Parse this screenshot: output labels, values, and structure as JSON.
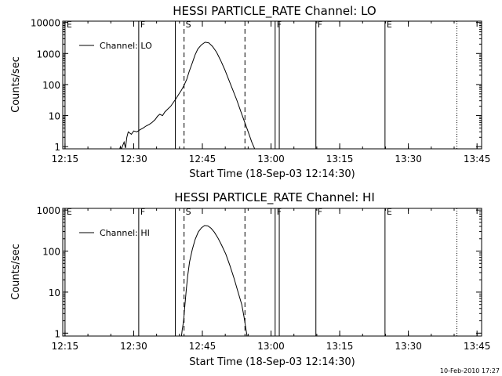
{
  "footer_date": "10-Feb-2010 17:27",
  "chart_data": [
    {
      "type": "line",
      "title": "HESSI PARTICLE_RATE Channel: LO",
      "xlabel": "Start Time (18-Sep-03 12:14:30)",
      "ylabel": "Counts/sec",
      "y_scale": "log",
      "ylim": [
        0.85,
        11000
      ],
      "xlim_minutes": [
        0,
        91.5
      ],
      "x_ticks": [
        {
          "label": "12:15",
          "t": 0.5
        },
        {
          "label": "12:30",
          "t": 15.5
        },
        {
          "label": "12:45",
          "t": 30.5
        },
        {
          "label": "13:00",
          "t": 45.5
        },
        {
          "label": "13:15",
          "t": 60.5
        },
        {
          "label": "13:30",
          "t": 75.5
        },
        {
          "label": "13:45",
          "t": 90.5
        }
      ],
      "y_ticks": [
        {
          "label": "1",
          "v": 1
        },
        {
          "label": "10",
          "v": 10
        },
        {
          "label": "100",
          "v": 100
        },
        {
          "label": "1000",
          "v": 1000
        },
        {
          "label": "10000",
          "v": 10000
        }
      ],
      "legend": {
        "position": "top-left",
        "entries": [
          "Channel: LO"
        ]
      },
      "markers": [
        {
          "t": 0.5,
          "style": "solid",
          "label": "E"
        },
        {
          "t": 16.6,
          "style": "solid",
          "label": "F"
        },
        {
          "t": 24.6,
          "style": "solid",
          "label": ""
        },
        {
          "t": 26.5,
          "style": "dashed",
          "label": "S"
        },
        {
          "t": 39.8,
          "style": "dashed",
          "label": ""
        },
        {
          "t": 46.4,
          "style": "solid",
          "label": "F"
        },
        {
          "t": 47.3,
          "style": "solid",
          "label": ""
        },
        {
          "t": 55.3,
          "style": "solid",
          "label": "F"
        },
        {
          "t": 70.4,
          "style": "solid",
          "label": "E"
        },
        {
          "t": 86.1,
          "style": "dotted",
          "label": ""
        }
      ],
      "series": [
        {
          "name": "Channel: LO",
          "points": [
            [
              12.4,
              0.8
            ],
            [
              12.6,
              1.0
            ],
            [
              12.8,
              0.8
            ],
            [
              13.0,
              1.0
            ],
            [
              13.4,
              1.4
            ],
            [
              13.7,
              0.9
            ],
            [
              14.0,
              2.0
            ],
            [
              14.3,
              3.0
            ],
            [
              15.0,
              2.5
            ],
            [
              15.5,
              3.2
            ],
            [
              16.2,
              3.0
            ],
            [
              16.9,
              3.5
            ],
            [
              17.6,
              4.0
            ],
            [
              18.2,
              4.6
            ],
            [
              18.9,
              5.2
            ],
            [
              19.5,
              6.0
            ],
            [
              20.2,
              7.5
            ],
            [
              20.7,
              9.5
            ],
            [
              21.2,
              11.0
            ],
            [
              21.8,
              10.0
            ],
            [
              22.3,
              13.0
            ],
            [
              22.9,
              16.0
            ],
            [
              23.6,
              20.0
            ],
            [
              24.2,
              27.0
            ],
            [
              24.8,
              36.0
            ],
            [
              25.3,
              48.0
            ],
            [
              25.9,
              65.0
            ],
            [
              26.5,
              95.0
            ],
            [
              27.1,
              150.0
            ],
            [
              27.6,
              260.0
            ],
            [
              28.3,
              500.0
            ],
            [
              28.9,
              900.0
            ],
            [
              29.5,
              1400.0
            ],
            [
              30.3,
              1900.0
            ],
            [
              31.1,
              2300.0
            ],
            [
              31.9,
              2200.0
            ],
            [
              32.7,
              1700.0
            ],
            [
              33.6,
              1100.0
            ],
            [
              34.5,
              600.0
            ],
            [
              35.4,
              300.0
            ],
            [
              36.2,
              150.0
            ],
            [
              37.1,
              70.0
            ],
            [
              38.0,
              32.0
            ],
            [
              38.8,
              15.0
            ],
            [
              39.6,
              7.0
            ],
            [
              40.5,
              3.0
            ],
            [
              41.3,
              1.4
            ],
            [
              42.0,
              0.8
            ]
          ]
        }
      ]
    },
    {
      "type": "line",
      "title": "HESSI PARTICLE_RATE Channel: HI",
      "xlabel": "Start Time (18-Sep-03 12:14:30)",
      "ylabel": "Counts/sec",
      "y_scale": "log",
      "ylim": [
        0.85,
        1100
      ],
      "xlim_minutes": [
        0,
        91.5
      ],
      "x_ticks": [
        {
          "label": "12:15",
          "t": 0.5
        },
        {
          "label": "12:30",
          "t": 15.5
        },
        {
          "label": "12:45",
          "t": 30.5
        },
        {
          "label": "13:00",
          "t": 45.5
        },
        {
          "label": "13:15",
          "t": 60.5
        },
        {
          "label": "13:30",
          "t": 75.5
        },
        {
          "label": "13:45",
          "t": 90.5
        }
      ],
      "y_ticks": [
        {
          "label": "1",
          "v": 1
        },
        {
          "label": "10",
          "v": 10
        },
        {
          "label": "100",
          "v": 100
        },
        {
          "label": "1000",
          "v": 1000
        }
      ],
      "legend": {
        "position": "top-left",
        "entries": [
          "Channel: HI"
        ]
      },
      "markers": [
        {
          "t": 0.5,
          "style": "solid",
          "label": "E"
        },
        {
          "t": 16.6,
          "style": "solid",
          "label": "F"
        },
        {
          "t": 24.6,
          "style": "solid",
          "label": ""
        },
        {
          "t": 26.5,
          "style": "dashed",
          "label": "S"
        },
        {
          "t": 39.8,
          "style": "dashed",
          "label": ""
        },
        {
          "t": 46.4,
          "style": "solid",
          "label": "F"
        },
        {
          "t": 47.3,
          "style": "solid",
          "label": ""
        },
        {
          "t": 55.3,
          "style": "solid",
          "label": "F"
        },
        {
          "t": 70.4,
          "style": "solid",
          "label": "E"
        },
        {
          "t": 86.1,
          "style": "dotted",
          "label": ""
        }
      ],
      "series": [
        {
          "name": "Channel: HI",
          "points": [
            [
              25.9,
              0.8
            ],
            [
              26.1,
              1.2
            ],
            [
              26.4,
              2.0
            ],
            [
              26.7,
              5.0
            ],
            [
              27.0,
              12.0
            ],
            [
              27.3,
              25.0
            ],
            [
              27.7,
              55.0
            ],
            [
              28.3,
              110.0
            ],
            [
              28.9,
              190.0
            ],
            [
              29.6,
              290.0
            ],
            [
              30.3,
              370.0
            ],
            [
              31.0,
              420.0
            ],
            [
              31.7,
              410.0
            ],
            [
              32.4,
              360.0
            ],
            [
              33.1,
              290.0
            ],
            [
              33.9,
              210.0
            ],
            [
              34.7,
              140.0
            ],
            [
              35.6,
              85.0
            ],
            [
              36.5,
              45.0
            ],
            [
              37.4,
              22.0
            ],
            [
              38.3,
              10.0
            ],
            [
              39.1,
              5.0
            ],
            [
              39.6,
              2.5
            ],
            [
              40.0,
              1.3
            ],
            [
              40.3,
              0.8
            ]
          ]
        }
      ]
    }
  ]
}
